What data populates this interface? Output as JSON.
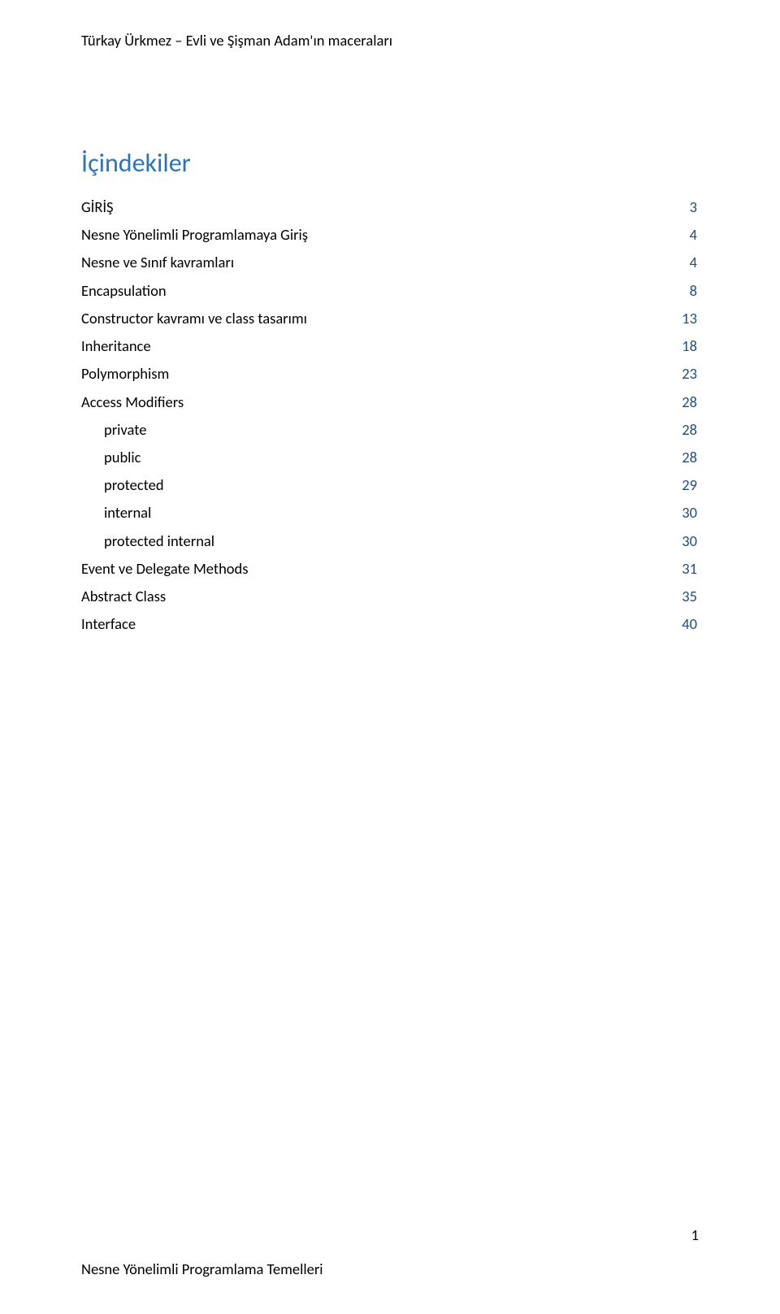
{
  "header": {
    "text": "Türkay Ürkmez – Evli ve Şişman Adam'ın maceraları"
  },
  "toc": {
    "title": "İçindekiler",
    "title_color": "#2e74b5",
    "page_number_color": "#1f4e79",
    "items": [
      {
        "label": "GİRİŞ",
        "page": "3",
        "indent": 0
      },
      {
        "label": "Nesne Yönelimli Programlamaya Giriş",
        "page": "4",
        "indent": 0
      },
      {
        "label": "Nesne ve Sınıf kavramları",
        "page": "4",
        "indent": 0
      },
      {
        "label": "Encapsulation",
        "page": "8",
        "indent": 0
      },
      {
        "label": "Constructor kavramı ve class tasarımı",
        "page": "13",
        "indent": 0
      },
      {
        "label": "Inheritance",
        "page": "18",
        "indent": 0
      },
      {
        "label": "Polymorphism",
        "page": "23",
        "indent": 0
      },
      {
        "label": "Access Modifiers",
        "page": "28",
        "indent": 0
      },
      {
        "label": "private",
        "page": "28",
        "indent": 1
      },
      {
        "label": "public",
        "page": "28",
        "indent": 1
      },
      {
        "label": "protected",
        "page": "29",
        "indent": 1
      },
      {
        "label": "internal",
        "page": "30",
        "indent": 1
      },
      {
        "label": "protected internal",
        "page": "30",
        "indent": 1
      },
      {
        "label": "Event ve Delegate Methods",
        "page": "31",
        "indent": 0
      },
      {
        "label": "Abstract Class",
        "page": "35",
        "indent": 0
      },
      {
        "label": "Interface",
        "page": "40",
        "indent": 0
      }
    ]
  },
  "footer": {
    "page_number": "1",
    "text": "Nesne Yönelimli Programlama Temelleri"
  }
}
